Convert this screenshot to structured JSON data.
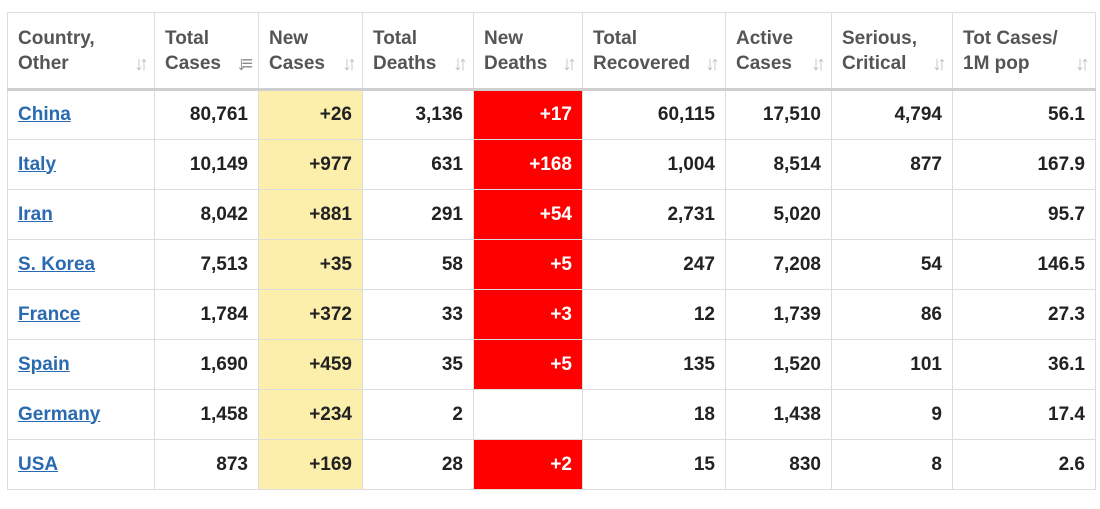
{
  "headers": [
    {
      "line1": "Country,",
      "line2": "Other"
    },
    {
      "line1": "Total",
      "line2": "Cases"
    },
    {
      "line1": "New",
      "line2": "Cases"
    },
    {
      "line1": "Total",
      "line2": "Deaths"
    },
    {
      "line1": "New",
      "line2": "Deaths"
    },
    {
      "line1": "Total",
      "line2": "Recovered"
    },
    {
      "line1": "Active",
      "line2": "Cases"
    },
    {
      "line1": "Serious,",
      "line2": "Critical"
    },
    {
      "line1": "Tot Cases/",
      "line2": "1M pop"
    }
  ],
  "rows": [
    {
      "country": "China",
      "total_cases": "80,761",
      "new_cases": "+26",
      "total_deaths": "3,136",
      "new_deaths": "+17",
      "total_recovered": "60,115",
      "active_cases": "17,510",
      "serious_critical": "4,794",
      "per_million": "56.1"
    },
    {
      "country": "Italy",
      "total_cases": "10,149",
      "new_cases": "+977",
      "total_deaths": "631",
      "new_deaths": "+168",
      "total_recovered": "1,004",
      "active_cases": "8,514",
      "serious_critical": "877",
      "per_million": "167.9"
    },
    {
      "country": "Iran",
      "total_cases": "8,042",
      "new_cases": "+881",
      "total_deaths": "291",
      "new_deaths": "+54",
      "total_recovered": "2,731",
      "active_cases": "5,020",
      "serious_critical": "",
      "per_million": "95.7"
    },
    {
      "country": "S. Korea",
      "total_cases": "7,513",
      "new_cases": "+35",
      "total_deaths": "58",
      "new_deaths": "+5",
      "total_recovered": "247",
      "active_cases": "7,208",
      "serious_critical": "54",
      "per_million": "146.5"
    },
    {
      "country": "France",
      "total_cases": "1,784",
      "new_cases": "+372",
      "total_deaths": "33",
      "new_deaths": "+3",
      "total_recovered": "12",
      "active_cases": "1,739",
      "serious_critical": "86",
      "per_million": "27.3"
    },
    {
      "country": "Spain",
      "total_cases": "1,690",
      "new_cases": "+459",
      "total_deaths": "35",
      "new_deaths": "+5",
      "total_recovered": "135",
      "active_cases": "1,520",
      "serious_critical": "101",
      "per_million": "36.1"
    },
    {
      "country": "Germany",
      "total_cases": "1,458",
      "new_cases": "+234",
      "total_deaths": "2",
      "new_deaths": "",
      "total_recovered": "18",
      "active_cases": "1,438",
      "serious_critical": "9",
      "per_million": "17.4"
    },
    {
      "country": "USA",
      "total_cases": "873",
      "new_cases": "+169",
      "total_deaths": "28",
      "new_deaths": "+2",
      "total_recovered": "15",
      "active_cases": "830",
      "serious_critical": "8",
      "per_million": "2.6"
    }
  ],
  "colors": {
    "new_cases_bg": "#fcefac",
    "new_deaths_bg": "#ff0000",
    "link": "#2a6ab0"
  },
  "icons": {
    "sort": "sort-arrows-icon",
    "sort_active": "sort-descending-icon"
  }
}
